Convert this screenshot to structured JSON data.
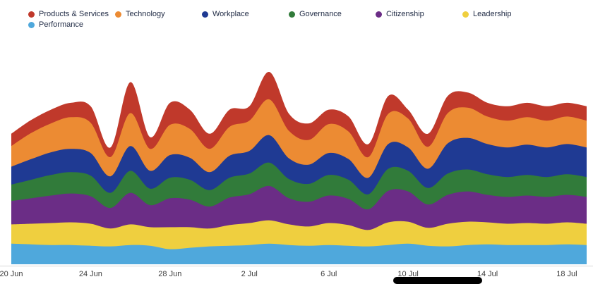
{
  "chart_data": {
    "type": "area",
    "stacked": true,
    "title": "",
    "xlabel": "",
    "ylabel": "",
    "grid": false,
    "legend_position": "top-left",
    "axis_line_color": "#d8d8d8",
    "tick_text_color": "#3c3c3c",
    "legend_text_color": "#1f2a44",
    "x_tick_labels": [
      "20 Jun",
      "24 Jun",
      "28 Jun",
      "2 Jul",
      "6 Jul",
      "10 Jul",
      "14 Jul",
      "18 Jul"
    ],
    "x_tick_indices": [
      0,
      4,
      8,
      12,
      16,
      20,
      24,
      28
    ],
    "x_range_days": 30,
    "legend_order": [
      "Products & Services",
      "Technology",
      "Workplace",
      "Governance",
      "Citizenship",
      "Leadership",
      "Performance"
    ],
    "series_bottom_to_top": [
      {
        "name": "Performance",
        "color": "#4fa8dc",
        "values": [
          30,
          29,
          28,
          28,
          27,
          26,
          28,
          27,
          22,
          24,
          26,
          27,
          28,
          30,
          28,
          27,
          28,
          27,
          26,
          28,
          30,
          27,
          26,
          28,
          29,
          28,
          28,
          28,
          29,
          28
        ]
      },
      {
        "name": "Leadership",
        "color": "#efcf3f",
        "values": [
          28,
          30,
          32,
          33,
          32,
          26,
          30,
          27,
          32,
          30,
          26,
          30,
          32,
          34,
          30,
          28,
          32,
          30,
          24,
          33,
          32,
          26,
          33,
          34,
          32,
          31,
          32,
          31,
          32,
          31
        ]
      },
      {
        "name": "Citizenship",
        "color": "#6b2d86",
        "values": [
          34,
          37,
          40,
          42,
          40,
          30,
          46,
          32,
          42,
          40,
          32,
          40,
          42,
          50,
          38,
          36,
          40,
          38,
          30,
          46,
          44,
          34,
          42,
          44,
          40,
          39,
          40,
          39,
          40,
          39
        ]
      },
      {
        "name": "Governance",
        "color": "#317b3a",
        "values": [
          24,
          27,
          30,
          31,
          30,
          22,
          32,
          24,
          30,
          29,
          24,
          29,
          30,
          34,
          28,
          26,
          30,
          28,
          22,
          32,
          30,
          24,
          31,
          32,
          30,
          29,
          30,
          29,
          30,
          29
        ]
      },
      {
        "name": "Workplace",
        "color": "#1f3a93",
        "values": [
          26,
          30,
          33,
          34,
          33,
          24,
          36,
          26,
          33,
          32,
          26,
          32,
          33,
          40,
          30,
          28,
          32,
          30,
          24,
          36,
          34,
          28,
          44,
          46,
          44,
          43,
          44,
          43,
          44,
          43
        ]
      },
      {
        "name": "Technology",
        "color": "#ec8b33",
        "values": [
          30,
          38,
          42,
          46,
          44,
          28,
          48,
          32,
          44,
          42,
          34,
          42,
          44,
          52,
          40,
          36,
          42,
          40,
          30,
          44,
          42,
          32,
          44,
          44,
          40,
          39,
          40,
          39,
          40,
          39
        ]
      },
      {
        "name": "Products & Services",
        "color": "#c0392b",
        "values": [
          18,
          19,
          20,
          21,
          24,
          14,
          45,
          17,
          32,
          28,
          22,
          25,
          21,
          40,
          25,
          24,
          21,
          22,
          19,
          26,
          13,
          19,
          25,
          22,
          20,
          21,
          21,
          21,
          20,
          21
        ]
      }
    ]
  }
}
